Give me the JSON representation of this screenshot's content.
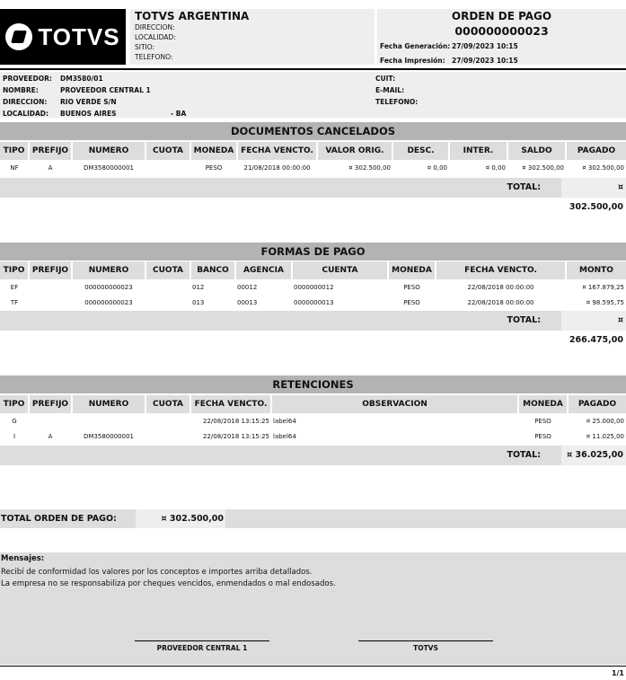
{
  "header": {
    "logo_text": "TOTVS",
    "company": {
      "name": "TOTVS ARGENTINA",
      "lines": [
        "DIRECCION:",
        "LOCALIDAD:",
        "SITIO:",
        "TELEFONO:"
      ]
    },
    "orden": {
      "title": "ORDEN DE PAGO",
      "number": "000000000023",
      "fecha_generacion_label": "Fecha Generación:",
      "fecha_generacion": "27/09/2023 10:15",
      "fecha_impresion_label": "Fecha Impresión:",
      "fecha_impresion": "27/09/2023 10:15"
    }
  },
  "proveedor": {
    "proveedor_label": "PROVEEDOR:",
    "proveedor": "DM3580/01",
    "nombre_label": "NOMBRE:",
    "nombre": "PROVEEDOR CENTRAL 1",
    "direccion_label": "DIRECCION:",
    "direccion": "RIO VERDE S/N",
    "localidad_label": "LOCALIDAD:",
    "localidad": "BUENOS AIRES",
    "provincia": "- BA",
    "cuit_label": "CUIT:",
    "email_label": "E-MAIL:",
    "telefono_label": "TELEFONO:"
  },
  "documentos": {
    "title": "DOCUMENTOS CANCELADOS",
    "columns": [
      "TIPO",
      "PREFIJO",
      "NUMERO",
      "CUOTA",
      "MONEDA",
      "FECHA VENCTO.",
      "VALOR ORIG.",
      "DESC.",
      "INTER.",
      "SALDO",
      "PAGADO"
    ],
    "rows": [
      [
        "NF",
        "A",
        "DM3580000001",
        "",
        "PESO",
        "21/08/2018 00:00:00",
        "¤ 302.500,00",
        "¤ 0,00",
        "¤ 0,00",
        "¤ 302.500,00",
        "¤ 302.500,00"
      ]
    ],
    "total_label": "TOTAL:",
    "total": "¤ 302.500,00"
  },
  "formas": {
    "title": "FORMAS DE PAGO",
    "columns": [
      "TIPO",
      "PREFIJO",
      "NUMERO",
      "CUOTA",
      "BANCO",
      "AGENCIA",
      "CUENTA",
      "MONEDA",
      "FECHA VENCTO.",
      "MONTO"
    ],
    "rows": [
      [
        "EF",
        "",
        "000000000023",
        "",
        "012",
        "00012",
        "0000000012",
        "PESO",
        "22/08/2018 00:00:00",
        "¤ 167.879,25"
      ],
      [
        "TF",
        "",
        "000000000023",
        "",
        "013",
        "00013",
        "0000000013",
        "PESO",
        "22/08/2018 00:00:00",
        "¤ 98.595,75"
      ]
    ],
    "total_label": "TOTAL:",
    "total": "¤ 266.475,00"
  },
  "retenciones": {
    "title": "RETENCIONES",
    "columns": [
      "TIPO",
      "PREFIJO",
      "NUMERO",
      "CUOTA",
      "FECHA VENCTO.",
      "OBSERVACION",
      "MONEDA",
      "PAGADO"
    ],
    "rows": [
      [
        "G",
        "",
        "",
        "",
        "22/08/2018 13:15:25",
        "label64",
        "PESO",
        "¤ 25.000,00"
      ],
      [
        "I",
        "A",
        "DM3580000001",
        "",
        "22/08/2018 13:15:25",
        "label64",
        "PESO",
        "¤ 11.025,00"
      ]
    ],
    "total_label": "TOTAL:",
    "total": "¤ 36.025,00"
  },
  "total_orden": {
    "label": "TOTAL ORDEN DE PAGO:",
    "value": "¤ 302.500,00"
  },
  "mensajes": {
    "title": "Mensajes:",
    "lines": [
      "Recibí de conformidad los valores por los conceptos e importes arriba detallados.",
      "La empresa no se responsabiliza por cheques vencidos, enmendados o mal endosados."
    ],
    "firma_proveedor": "PROVEEDOR CENTRAL 1",
    "firma_empresa": "TOTVS"
  },
  "page_number": "1/1"
}
